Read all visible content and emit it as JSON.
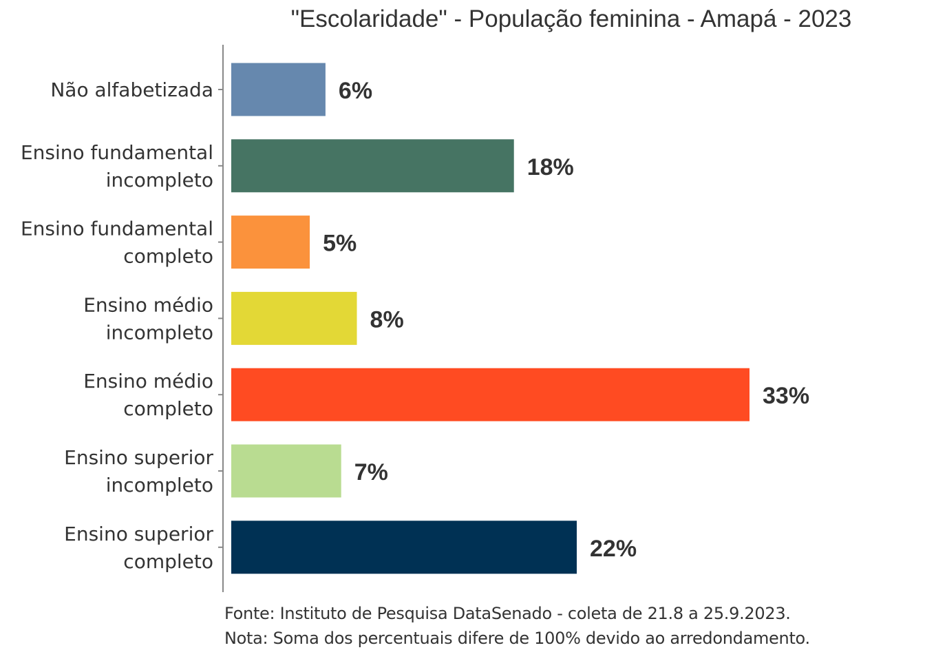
{
  "chart_data": {
    "type": "bar",
    "orientation": "horizontal",
    "title": "\"Escolaridade\" - População feminina - Amapá - 2023",
    "xlabel": "",
    "ylabel": "",
    "xlim": [
      0,
      33
    ],
    "grid": false,
    "categories": [
      [
        "Não alfabetizada"
      ],
      [
        "Ensino fundamental",
        "incompleto"
      ],
      [
        "Ensino fundamental",
        "completo"
      ],
      [
        "Ensino médio",
        "incompleto"
      ],
      [
        "Ensino médio",
        "completo"
      ],
      [
        "Ensino superior",
        "incompleto"
      ],
      [
        "Ensino superior",
        "completo"
      ]
    ],
    "values": [
      6,
      18,
      5,
      8,
      33,
      7,
      22
    ],
    "value_labels": [
      "6%",
      "18%",
      "5%",
      "8%",
      "33%",
      "7%",
      "22%"
    ],
    "colors": [
      "#6688AE",
      "#467463",
      "#FB923C",
      "#E3D836",
      "#FF4B22",
      "#B9DC91",
      "#003154"
    ]
  },
  "footer": {
    "source": "Fonte: Instituto de Pesquisa DataSenado - coleta de 21.8 a 25.9.2023.",
    "note": "Nota: Soma dos percentuais difere de 100% devido ao arredondamento."
  }
}
